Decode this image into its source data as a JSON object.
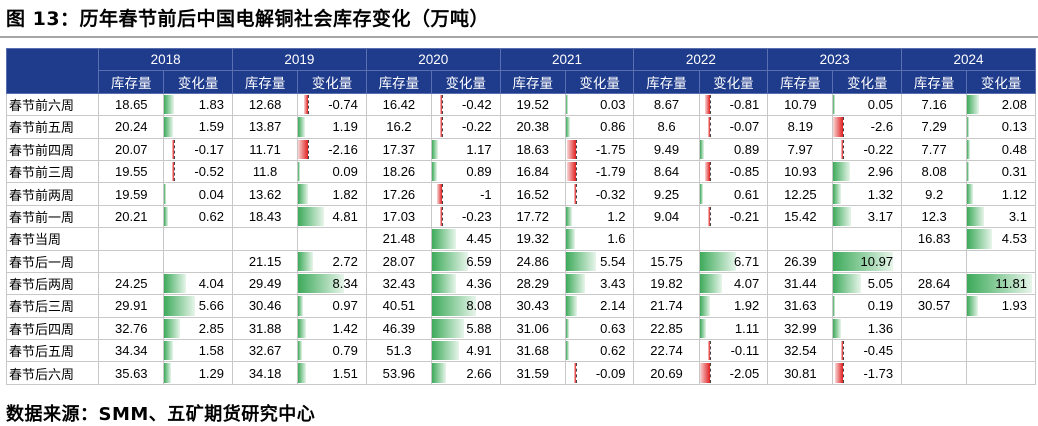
{
  "title": "图 13：历年春节前后中国电解铜社会库存变化（万吨）",
  "source": "数据来源：SMM、五矿期货研究中心",
  "colors": {
    "header_bg": "#1f3b8c",
    "positive_bar": "#3daa5a",
    "negative_bar": "#e02020"
  },
  "table": {
    "years": [
      "2018",
      "2019",
      "2020",
      "2021",
      "2022",
      "2023",
      "2024"
    ],
    "col_labels": {
      "inventory": "库存量",
      "change": "变化量"
    },
    "rows": [
      {
        "label": "春节前六周",
        "cells": [
          [
            "18.65",
            "1.83"
          ],
          [
            "12.68",
            "-0.74"
          ],
          [
            "16.42",
            "-0.42"
          ],
          [
            "19.52",
            "0.03"
          ],
          [
            "8.67",
            "-0.81"
          ],
          [
            "10.79",
            "0.05"
          ],
          [
            "7.16",
            "2.08"
          ]
        ]
      },
      {
        "label": "春节前五周",
        "cells": [
          [
            "20.24",
            "1.59"
          ],
          [
            "13.87",
            "1.19"
          ],
          [
            "16.2",
            "-0.22"
          ],
          [
            "20.38",
            "0.86"
          ],
          [
            "8.6",
            "-0.07"
          ],
          [
            "8.19",
            "-2.6"
          ],
          [
            "7.29",
            "0.13"
          ]
        ]
      },
      {
        "label": "春节前四周",
        "cells": [
          [
            "20.07",
            "-0.17"
          ],
          [
            "11.71",
            "-2.16"
          ],
          [
            "17.37",
            "1.17"
          ],
          [
            "18.63",
            "-1.75"
          ],
          [
            "9.49",
            "0.89"
          ],
          [
            "7.97",
            "-0.22"
          ],
          [
            "7.77",
            "0.48"
          ]
        ]
      },
      {
        "label": "春节前三周",
        "cells": [
          [
            "19.55",
            "-0.52"
          ],
          [
            "11.8",
            "0.09"
          ],
          [
            "18.26",
            "0.89"
          ],
          [
            "16.84",
            "-1.79"
          ],
          [
            "8.64",
            "-0.85"
          ],
          [
            "10.93",
            "2.96"
          ],
          [
            "8.08",
            "0.31"
          ]
        ]
      },
      {
        "label": "春节前两周",
        "cells": [
          [
            "19.59",
            "0.04"
          ],
          [
            "13.62",
            "1.82"
          ],
          [
            "17.26",
            "-1"
          ],
          [
            "16.52",
            "-0.32"
          ],
          [
            "9.25",
            "0.61"
          ],
          [
            "12.25",
            "1.32"
          ],
          [
            "9.2",
            "1.12"
          ]
        ]
      },
      {
        "label": "春节前一周",
        "cells": [
          [
            "20.21",
            "0.62"
          ],
          [
            "18.43",
            "4.81"
          ],
          [
            "17.03",
            "-0.23"
          ],
          [
            "17.72",
            "1.2"
          ],
          [
            "9.04",
            "-0.21"
          ],
          [
            "15.42",
            "3.17"
          ],
          [
            "12.3",
            "3.1"
          ]
        ]
      },
      {
        "label": "春节当周",
        "cells": [
          [
            "",
            ""
          ],
          [
            "",
            ""
          ],
          [
            "21.48",
            "4.45"
          ],
          [
            "19.32",
            "1.6"
          ],
          [
            "",
            ""
          ],
          [
            "",
            ""
          ],
          [
            "16.83",
            "4.53"
          ]
        ]
      },
      {
        "label": "春节后一周",
        "cells": [
          [
            "",
            ""
          ],
          [
            "21.15",
            "2.72"
          ],
          [
            "28.07",
            "6.59"
          ],
          [
            "24.86",
            "5.54"
          ],
          [
            "15.75",
            "6.71"
          ],
          [
            "26.39",
            "10.97"
          ],
          [
            "",
            ""
          ]
        ]
      },
      {
        "label": "春节后两周",
        "cells": [
          [
            "24.25",
            "4.04"
          ],
          [
            "29.49",
            "8.34"
          ],
          [
            "32.43",
            "4.36"
          ],
          [
            "28.29",
            "3.43"
          ],
          [
            "19.82",
            "4.07"
          ],
          [
            "31.44",
            "5.05"
          ],
          [
            "28.64",
            "11.81"
          ]
        ]
      },
      {
        "label": "春节后三周",
        "cells": [
          [
            "29.91",
            "5.66"
          ],
          [
            "30.46",
            "0.97"
          ],
          [
            "40.51",
            "8.08"
          ],
          [
            "30.43",
            "2.14"
          ],
          [
            "21.74",
            "1.92"
          ],
          [
            "31.63",
            "0.19"
          ],
          [
            "30.57",
            "1.93"
          ]
        ]
      },
      {
        "label": "春节后四周",
        "cells": [
          [
            "32.76",
            "2.85"
          ],
          [
            "31.88",
            "1.42"
          ],
          [
            "46.39",
            "5.88"
          ],
          [
            "31.06",
            "0.63"
          ],
          [
            "22.85",
            "1.11"
          ],
          [
            "32.99",
            "1.36"
          ],
          [
            "",
            ""
          ]
        ]
      },
      {
        "label": "春节后五周",
        "cells": [
          [
            "34.34",
            "1.58"
          ],
          [
            "32.67",
            "0.79"
          ],
          [
            "51.3",
            "4.91"
          ],
          [
            "31.68",
            "0.62"
          ],
          [
            "22.74",
            "-0.11"
          ],
          [
            "32.54",
            "-0.45"
          ],
          [
            "",
            ""
          ]
        ]
      },
      {
        "label": "春节后六周",
        "cells": [
          [
            "35.63",
            "1.29"
          ],
          [
            "34.18",
            "1.51"
          ],
          [
            "53.96",
            "2.66"
          ],
          [
            "31.59",
            "-0.09"
          ],
          [
            "20.69",
            "-2.05"
          ],
          [
            "30.81",
            "-1.73"
          ],
          [
            "",
            ""
          ]
        ]
      }
    ]
  }
}
